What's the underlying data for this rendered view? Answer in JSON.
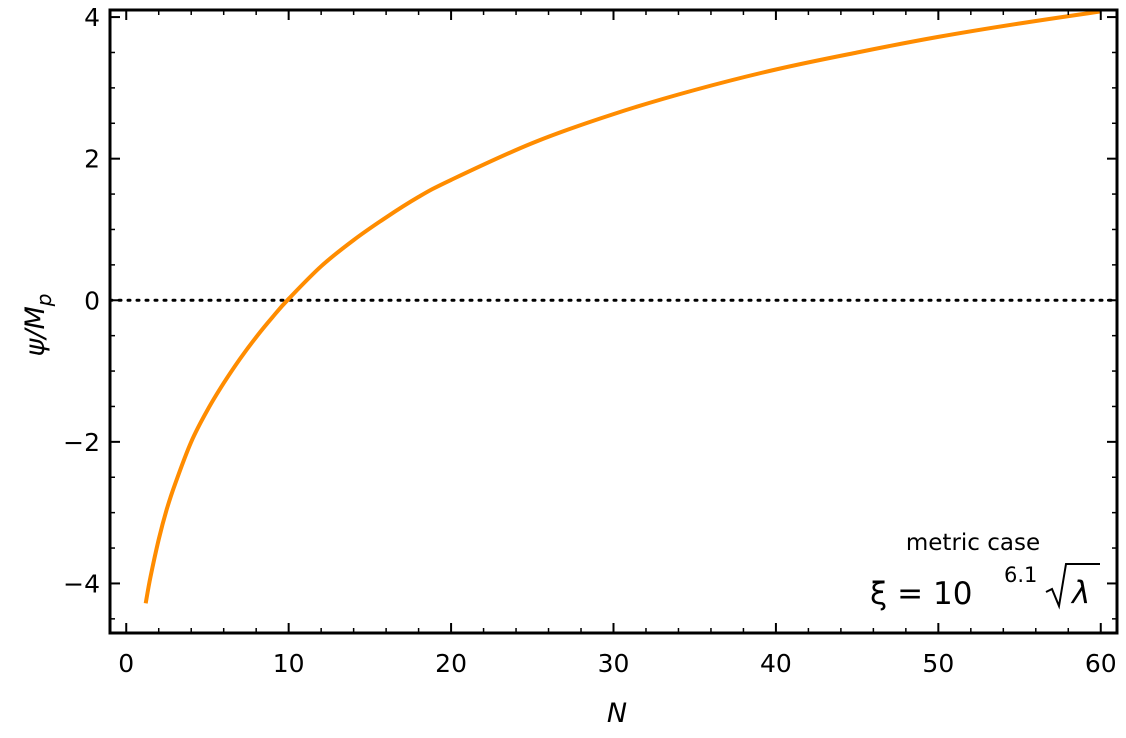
{
  "chart_data": {
    "type": "line",
    "xlabel": "N",
    "ylabel": {
      "main": "ψ/M",
      "sub": "p"
    },
    "xlim": [
      -1,
      61
    ],
    "ylim": [
      -4.7,
      4.1
    ],
    "xticks": [
      0,
      10,
      20,
      30,
      40,
      50,
      60
    ],
    "xtick_labels": [
      "0",
      "10",
      "20",
      "30",
      "40",
      "50",
      "60"
    ],
    "yticks": [
      -4,
      -2,
      0,
      2,
      4
    ],
    "ytick_labels": [
      "−4",
      "−2",
      "0",
      "2",
      "4"
    ],
    "x_minor_step": 2,
    "y_minor_step": 0.5,
    "reference_line": {
      "y": 0,
      "style": "dotted"
    },
    "grid": false,
    "series": [
      {
        "color": "#ff8c00",
        "x": [
          1.2,
          1.5,
          2,
          2.5,
          3,
          4,
          5,
          6,
          7,
          8,
          9,
          10,
          12,
          14,
          16,
          18,
          20,
          25,
          30,
          35,
          40,
          45,
          50,
          55,
          60
        ],
        "y": [
          -4.28,
          -3.9,
          -3.38,
          -2.95,
          -2.6,
          -2.0,
          -1.55,
          -1.17,
          -0.83,
          -0.52,
          -0.24,
          0.02,
          0.48,
          0.85,
          1.17,
          1.46,
          1.7,
          2.22,
          2.63,
          2.97,
          3.26,
          3.5,
          3.72,
          3.91,
          4.08
        ]
      }
    ],
    "annotations": [
      {
        "text": "metric case"
      },
      {
        "prefix": "ξ = 10",
        "superscript": "6.1",
        "radicand": "λ"
      }
    ]
  }
}
